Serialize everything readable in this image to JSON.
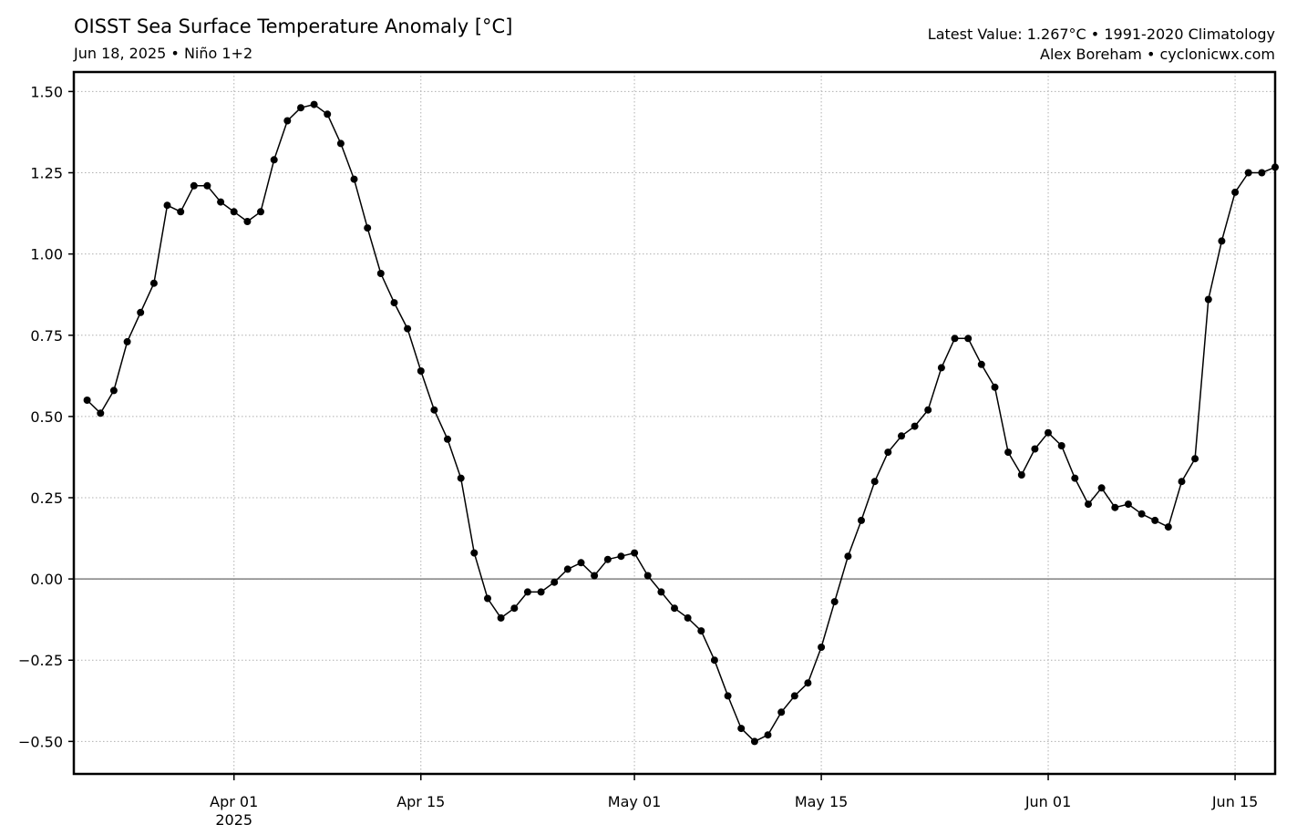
{
  "header": {
    "title": "OISST Sea Surface Temperature Anomaly [°C]",
    "subtitle": "Jun 18, 2025 • Niño 1+2",
    "info_line1": "Latest Value: 1.267°C • 1991-2020 Climatology",
    "info_line2": "Alex Boreham • cyclonicwx.com"
  },
  "chart_data": {
    "type": "line",
    "title": "OISST Sea Surface Temperature Anomaly [°C]",
    "xlabel": "",
    "ylabel": "",
    "x_start_date": "2025-03-21",
    "x_end_date": "2025-06-18",
    "ylim": [
      -0.6,
      1.56
    ],
    "grid": true,
    "zero_line": true,
    "line_color": "#000000",
    "zero_line_color": "#808080",
    "grid_color": "#b0b0b0",
    "y_ticks": [
      -0.5,
      -0.25,
      0.0,
      0.25,
      0.5,
      0.75,
      1.0,
      1.25,
      1.5
    ],
    "y_tick_labels": [
      "−0.50",
      "−0.25",
      "0.00",
      "0.25",
      "0.50",
      "0.75",
      "1.00",
      "1.25",
      "1.50"
    ],
    "x_ticks": [
      {
        "date": "2025-04-01",
        "label": "Apr 01",
        "sublabel": "2025"
      },
      {
        "date": "2025-04-15",
        "label": "Apr 15",
        "sublabel": ""
      },
      {
        "date": "2025-05-01",
        "label": "May 01",
        "sublabel": ""
      },
      {
        "date": "2025-05-15",
        "label": "May 15",
        "sublabel": ""
      },
      {
        "date": "2025-06-01",
        "label": "Jun 01",
        "sublabel": ""
      },
      {
        "date": "2025-06-15",
        "label": "Jun 15",
        "sublabel": ""
      }
    ],
    "series": [
      {
        "name": "",
        "values": [
          0.55,
          0.51,
          0.58,
          0.73,
          0.82,
          0.91,
          1.15,
          1.13,
          1.21,
          1.21,
          1.16,
          1.13,
          1.1,
          1.13,
          1.29,
          1.41,
          1.45,
          1.46,
          1.43,
          1.34,
          1.23,
          1.08,
          0.94,
          0.85,
          0.77,
          0.64,
          0.52,
          0.43,
          0.31,
          0.08,
          -0.06,
          -0.12,
          -0.09,
          -0.04,
          -0.04,
          -0.01,
          0.03,
          0.05,
          0.01,
          0.06,
          0.07,
          0.08,
          0.01,
          -0.04,
          -0.09,
          -0.12,
          -0.16,
          -0.25,
          -0.36,
          -0.46,
          -0.5,
          -0.48,
          -0.41,
          -0.36,
          -0.32,
          -0.21,
          -0.07,
          0.07,
          0.18,
          0.3,
          0.39,
          0.44,
          0.47,
          0.52,
          0.65,
          0.74,
          0.74,
          0.66,
          0.59,
          0.39,
          0.32,
          0.4,
          0.45,
          0.41,
          0.31,
          0.23,
          0.28,
          0.22,
          0.23,
          0.2,
          0.18,
          0.16,
          0.3,
          0.37,
          0.86,
          1.04,
          1.19,
          1.25,
          1.25,
          1.267
        ]
      }
    ]
  }
}
